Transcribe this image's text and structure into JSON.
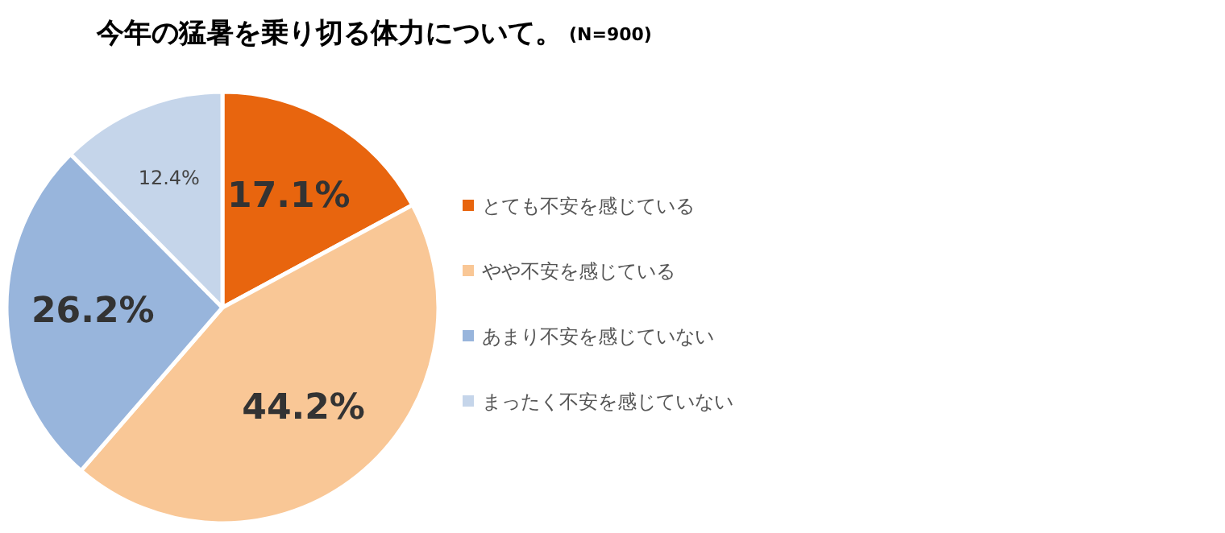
{
  "chart_data": {
    "type": "pie",
    "title": "今年の猛暑を乗り切る体力について。",
    "subtitle": "(N=900)",
    "categories": [
      "とても不安を感じている",
      "やや不安を感じている",
      "あまり不安を感じていない",
      "まったく不安を感じていない"
    ],
    "values": [
      17.1,
      44.2,
      26.2,
      12.4
    ],
    "colors": [
      "#e8650e",
      "#f9c796",
      "#98b5dc",
      "#c5d5ea"
    ],
    "value_labels": [
      "17.1%",
      "44.2%",
      "26.2%",
      "12.4%"
    ],
    "legend": "right"
  }
}
